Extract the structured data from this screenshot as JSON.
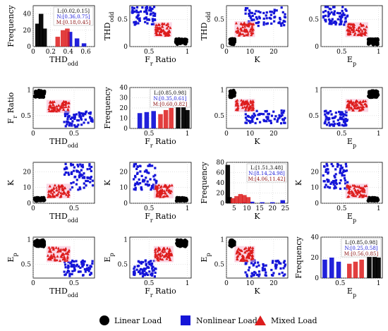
{
  "chart_data": [
    {
      "row": 0,
      "col": 0,
      "type": "bar",
      "variable": "THD_odd",
      "xlabel": "THD",
      "xlabel_sub": "odd",
      "ylabel": "Frequency",
      "xticks": [
        0,
        0.2,
        0.4,
        0.6
      ],
      "yticks": [
        0,
        20,
        40
      ],
      "xlim": [
        0,
        0.7
      ],
      "ylim": [
        0,
        50
      ],
      "annotations": [
        "L:[0.02,0.15]",
        "N:[0.36,0.75]",
        "M:[0.18,0.45]"
      ],
      "series": [
        {
          "name": "Linear Load",
          "color": "#000000",
          "x": [
            0.05,
            0.09,
            0.13
          ],
          "values": [
            28,
            40,
            22
          ]
        },
        {
          "name": "Nonlinear Load",
          "color": "#1515d8",
          "x": [
            0.42,
            0.5,
            0.58
          ],
          "values": [
            18,
            10,
            4
          ]
        },
        {
          "name": "Mixed Load",
          "color": "#dd1c1c",
          "x": [
            0.28,
            0.34,
            0.39
          ],
          "values": [
            12,
            20,
            22
          ]
        }
      ]
    },
    {
      "row": 0,
      "col": 1,
      "type": "scatter",
      "xvar": "Fr_Ratio",
      "yvar": "THD_odd",
      "xlabel": "F",
      "xlabel_sub": "r",
      "xlabel_suffix": " Ratio",
      "ylabel": "THD",
      "ylabel_sub": "odd",
      "xticks": [
        0.5,
        1
      ],
      "yticks": [
        0,
        0.5
      ],
      "xlim": [
        0.25,
        1.05
      ],
      "ylim": [
        0,
        0.75
      ],
      "clusters": [
        {
          "name": "Linear Load",
          "color": "#000000",
          "x": [
            0.85,
            0.99
          ],
          "y": [
            0.04,
            0.14
          ]
        },
        {
          "name": "Nonlinear Load",
          "color": "#1515d8",
          "x": [
            0.28,
            0.58
          ],
          "y": [
            0.4,
            0.73
          ]
        },
        {
          "name": "Mixed Load",
          "color": "#dd1c1c",
          "x": [
            0.58,
            0.78
          ],
          "y": [
            0.2,
            0.42
          ]
        }
      ]
    },
    {
      "row": 0,
      "col": 2,
      "type": "scatter",
      "xvar": "K",
      "yvar": "THD_odd",
      "xlabel": "K",
      "ylabel": "THD",
      "ylabel_sub": "odd",
      "xticks": [
        0,
        10,
        20
      ],
      "yticks": [
        0,
        0.5
      ],
      "xlim": [
        0,
        26
      ],
      "ylim": [
        0,
        0.75
      ],
      "clusters": [
        {
          "name": "Linear Load",
          "color": "#000000",
          "x": [
            1.5,
            3.5
          ],
          "y": [
            0.04,
            0.14
          ]
        },
        {
          "name": "Nonlinear Load",
          "color": "#1515d8",
          "x": [
            8,
            25
          ],
          "y": [
            0.38,
            0.72
          ]
        },
        {
          "name": "Mixed Load",
          "color": "#dd1c1c",
          "x": [
            4,
            11.5
          ],
          "y": [
            0.2,
            0.44
          ]
        }
      ]
    },
    {
      "row": 0,
      "col": 3,
      "type": "scatter",
      "xvar": "Ep",
      "yvar": "THD_odd",
      "xlabel": "E",
      "xlabel_sub": "p",
      "ylabel": "",
      "xticks": [
        0.5,
        1
      ],
      "yticks": [
        0,
        0.5
      ],
      "xlim": [
        0.22,
        1.05
      ],
      "ylim": [
        0,
        0.75
      ],
      "clusters": [
        {
          "name": "Linear Load",
          "color": "#000000",
          "x": [
            0.86,
            0.99
          ],
          "y": [
            0.04,
            0.14
          ]
        },
        {
          "name": "Nonlinear Load",
          "color": "#1515d8",
          "x": [
            0.25,
            0.58
          ],
          "y": [
            0.4,
            0.73
          ]
        },
        {
          "name": "Mixed Load",
          "color": "#dd1c1c",
          "x": [
            0.57,
            0.84
          ],
          "y": [
            0.2,
            0.42
          ]
        }
      ]
    },
    {
      "row": 1,
      "col": 0,
      "type": "scatter",
      "xvar": "THD_odd",
      "yvar": "Fr_Ratio",
      "xlabel": "THD",
      "xlabel_sub": "odd",
      "ylabel": "F",
      "ylabel_sub": "r",
      "ylabel_suffix": " Ratio",
      "xticks": [
        0,
        0.5
      ],
      "yticks": [
        0.5,
        1
      ],
      "xlim": [
        0,
        0.75
      ],
      "ylim": [
        0.25,
        1.05
      ],
      "clusters": [
        {
          "name": "Linear Load",
          "color": "#000000",
          "x": [
            0.02,
            0.14
          ],
          "y": [
            0.86,
            0.99
          ]
        },
        {
          "name": "Nonlinear Load",
          "color": "#1515d8",
          "x": [
            0.38,
            0.73
          ],
          "y": [
            0.28,
            0.58
          ]
        },
        {
          "name": "Mixed Load",
          "color": "#dd1c1c",
          "x": [
            0.18,
            0.44
          ],
          "y": [
            0.58,
            0.78
          ]
        }
      ]
    },
    {
      "row": 1,
      "col": 1,
      "type": "bar",
      "variable": "Fr_Ratio",
      "xlabel": "F",
      "xlabel_sub": "r",
      "xlabel_suffix": " Ratio",
      "ylabel": "Frequency",
      "xticks": [
        0.5,
        1
      ],
      "yticks": [
        0,
        10,
        20,
        30,
        40
      ],
      "xlim": [
        0.25,
        1.05
      ],
      "ylim": [
        0,
        40
      ],
      "annotations": [
        "L:[0.85,0.98]",
        "N:[0.35,0.61]",
        "M:[0.60,0.82]"
      ],
      "series": [
        {
          "name": "Linear Load",
          "color": "#000000",
          "x": [
            0.88,
            0.95,
            1.0
          ],
          "values": [
            22,
            24,
            18
          ]
        },
        {
          "name": "Nonlinear Load",
          "color": "#1515d8",
          "x": [
            0.38,
            0.47,
            0.56
          ],
          "values": [
            15,
            16,
            17
          ]
        },
        {
          "name": "Mixed Load",
          "color": "#dd1c1c",
          "x": [
            0.65,
            0.72,
            0.79
          ],
          "values": [
            14,
            18,
            20
          ]
        }
      ]
    },
    {
      "row": 1,
      "col": 2,
      "type": "scatter",
      "xvar": "K",
      "yvar": "Fr_Ratio",
      "xlabel": "K",
      "ylabel": "",
      "xticks": [
        0,
        10,
        20
      ],
      "yticks": [
        0.5,
        1
      ],
      "xlim": [
        0,
        26
      ],
      "ylim": [
        0.25,
        1.05
      ],
      "clusters": [
        {
          "name": "Linear Load",
          "color": "#000000",
          "x": [
            1.5,
            3.5
          ],
          "y": [
            0.86,
            0.99
          ]
        },
        {
          "name": "Nonlinear Load",
          "color": "#1515d8",
          "x": [
            8,
            25
          ],
          "y": [
            0.35,
            0.6
          ]
        },
        {
          "name": "Mixed Load",
          "color": "#dd1c1c",
          "x": [
            4,
            11.5
          ],
          "y": [
            0.6,
            0.8
          ]
        }
      ]
    },
    {
      "row": 1,
      "col": 3,
      "type": "scatter",
      "xvar": "Ep",
      "yvar": "Fr_Ratio",
      "xlabel": "E",
      "xlabel_sub": "p",
      "ylabel": "",
      "xticks": [
        0.5,
        1
      ],
      "yticks": [
        0.5,
        1
      ],
      "xlim": [
        0.22,
        1.05
      ],
      "ylim": [
        0.25,
        1.05
      ],
      "clusters": [
        {
          "name": "Linear Load",
          "color": "#000000",
          "x": [
            0.86,
            0.99
          ],
          "y": [
            0.86,
            0.99
          ]
        },
        {
          "name": "Nonlinear Load",
          "color": "#1515d8",
          "x": [
            0.25,
            0.58
          ],
          "y": [
            0.3,
            0.6
          ]
        },
        {
          "name": "Mixed Load",
          "color": "#dd1c1c",
          "x": [
            0.57,
            0.84
          ],
          "y": [
            0.6,
            0.8
          ]
        }
      ]
    },
    {
      "row": 2,
      "col": 0,
      "type": "scatter",
      "xvar": "THD_odd",
      "yvar": "K",
      "xlabel": "THD",
      "xlabel_sub": "odd",
      "ylabel": "K",
      "xticks": [
        0,
        0.5
      ],
      "yticks": [
        0,
        10,
        20
      ],
      "xlim": [
        0,
        0.75
      ],
      "ylim": [
        0,
        26
      ],
      "clusters": [
        {
          "name": "Linear Load",
          "color": "#000000",
          "x": [
            0.02,
            0.14
          ],
          "y": [
            1.5,
            3.5
          ]
        },
        {
          "name": "Nonlinear Load",
          "color": "#1515d8",
          "x": [
            0.38,
            0.73
          ],
          "y": [
            8,
            25
          ]
        },
        {
          "name": "Mixed Load",
          "color": "#dd1c1c",
          "x": [
            0.18,
            0.44
          ],
          "y": [
            4,
            11.5
          ]
        }
      ]
    },
    {
      "row": 2,
      "col": 1,
      "type": "scatter",
      "xvar": "Fr_Ratio",
      "yvar": "K",
      "xlabel": "F",
      "xlabel_sub": "r",
      "xlabel_suffix": " Ratio",
      "ylabel": "K",
      "xticks": [
        0.5,
        1
      ],
      "yticks": [
        0,
        10,
        20
      ],
      "xlim": [
        0.25,
        1.05
      ],
      "ylim": [
        0,
        26
      ],
      "clusters": [
        {
          "name": "Linear Load",
          "color": "#000000",
          "x": [
            0.86,
            0.99
          ],
          "y": [
            1.5,
            3.5
          ]
        },
        {
          "name": "Nonlinear Load",
          "color": "#1515d8",
          "x": [
            0.3,
            0.6
          ],
          "y": [
            8,
            25
          ]
        },
        {
          "name": "Mixed Load",
          "color": "#dd1c1c",
          "x": [
            0.58,
            0.8
          ],
          "y": [
            4,
            11.5
          ]
        }
      ]
    },
    {
      "row": 2,
      "col": 2,
      "type": "bar",
      "variable": "K",
      "xlabel": "K",
      "ylabel": "Frequency",
      "xticks": [
        5,
        10,
        15,
        20,
        25
      ],
      "yticks": [
        0,
        20,
        40,
        60,
        80
      ],
      "xlim": [
        2,
        26
      ],
      "ylim": [
        0,
        80
      ],
      "annotations": [
        "L:[1.51,3.48]",
        "N:[8.14,24.98]",
        "M:[4.06,11.42]"
      ],
      "series": [
        {
          "name": "Linear Load",
          "color": "#000000",
          "x": [
            2.5,
            3.2
          ],
          "values": [
            75,
            12
          ]
        },
        {
          "name": "Nonlinear Load",
          "color": "#1515d8",
          "x": [
            9,
            12,
            16,
            20,
            24
          ],
          "values": [
            2,
            3,
            2,
            2,
            6
          ]
        },
        {
          "name": "Mixed Load",
          "color": "#dd1c1c",
          "x": [
            4.5,
            6,
            7.5,
            9,
            10.5
          ],
          "values": [
            10,
            14,
            18,
            16,
            12
          ]
        }
      ]
    },
    {
      "row": 2,
      "col": 3,
      "type": "scatter",
      "xvar": "Ep",
      "yvar": "K",
      "xlabel": "E",
      "xlabel_sub": "p",
      "ylabel": "K",
      "xticks": [
        0.5,
        1
      ],
      "yticks": [
        0,
        10,
        20
      ],
      "xlim": [
        0.22,
        1.05
      ],
      "ylim": [
        0,
        26
      ],
      "clusters": [
        {
          "name": "Linear Load",
          "color": "#000000",
          "x": [
            0.86,
            0.99
          ],
          "y": [
            1.5,
            3.5
          ]
        },
        {
          "name": "Nonlinear Load",
          "color": "#1515d8",
          "x": [
            0.25,
            0.58
          ],
          "y": [
            8,
            25
          ]
        },
        {
          "name": "Mixed Load",
          "color": "#dd1c1c",
          "x": [
            0.57,
            0.84
          ],
          "y": [
            4,
            11.5
          ]
        }
      ]
    },
    {
      "row": 3,
      "col": 0,
      "type": "scatter",
      "xvar": "THD_odd",
      "yvar": "Ep",
      "xlabel": "THD",
      "xlabel_sub": "odd",
      "ylabel": "E",
      "ylabel_sub": "p",
      "xticks": [
        0,
        0.5
      ],
      "yticks": [
        0.5,
        1
      ],
      "xlim": [
        0,
        0.75
      ],
      "ylim": [
        0.22,
        1.05
      ],
      "clusters": [
        {
          "name": "Linear Load",
          "color": "#000000",
          "x": [
            0.02,
            0.14
          ],
          "y": [
            0.86,
            0.99
          ]
        },
        {
          "name": "Nonlinear Load",
          "color": "#1515d8",
          "x": [
            0.38,
            0.73
          ],
          "y": [
            0.25,
            0.58
          ]
        },
        {
          "name": "Mixed Load",
          "color": "#dd1c1c",
          "x": [
            0.18,
            0.44
          ],
          "y": [
            0.57,
            0.84
          ]
        }
      ]
    },
    {
      "row": 3,
      "col": 1,
      "type": "scatter",
      "xvar": "Fr_Ratio",
      "yvar": "Ep",
      "xlabel": "F",
      "xlabel_sub": "r",
      "xlabel_suffix": " Ratio",
      "ylabel": "E",
      "ylabel_sub": "p",
      "xticks": [
        0.5,
        1
      ],
      "yticks": [
        0.5,
        1
      ],
      "xlim": [
        0.25,
        1.05
      ],
      "ylim": [
        0.22,
        1.05
      ],
      "clusters": [
        {
          "name": "Linear Load",
          "color": "#000000",
          "x": [
            0.86,
            0.99
          ],
          "y": [
            0.86,
            0.99
          ]
        },
        {
          "name": "Nonlinear Load",
          "color": "#1515d8",
          "x": [
            0.3,
            0.6
          ],
          "y": [
            0.25,
            0.58
          ]
        },
        {
          "name": "Mixed Load",
          "color": "#dd1c1c",
          "x": [
            0.58,
            0.8
          ],
          "y": [
            0.57,
            0.84
          ]
        }
      ]
    },
    {
      "row": 3,
      "col": 2,
      "type": "scatter",
      "xvar": "K",
      "yvar": "Ep",
      "xlabel": "K",
      "ylabel": "E",
      "ylabel_sub": "p",
      "xticks": [
        0,
        10,
        20
      ],
      "yticks": [
        0.5,
        1
      ],
      "xlim": [
        0,
        26
      ],
      "ylim": [
        0.22,
        1.05
      ],
      "clusters": [
        {
          "name": "Linear Load",
          "color": "#000000",
          "x": [
            1.5,
            3.5
          ],
          "y": [
            0.86,
            0.99
          ]
        },
        {
          "name": "Nonlinear Load",
          "color": "#1515d8",
          "x": [
            8,
            25
          ],
          "y": [
            0.25,
            0.58
          ]
        },
        {
          "name": "Mixed Load",
          "color": "#dd1c1c",
          "x": [
            4,
            11.5
          ],
          "y": [
            0.57,
            0.84
          ]
        }
      ]
    },
    {
      "row": 3,
      "col": 3,
      "type": "bar",
      "variable": "Ep",
      "xlabel": "E",
      "xlabel_sub": "p",
      "ylabel": "Frequency",
      "xticks": [
        0.5,
        1
      ],
      "yticks": [
        0,
        20,
        40
      ],
      "xlim": [
        0.25,
        1.05
      ],
      "ylim": [
        0,
        40
      ],
      "annotations": [
        "L:[0.85,0.98]",
        "N:[0.25,0.58]",
        "M:[0.56,0.85]"
      ],
      "series": [
        {
          "name": "Linear Load",
          "color": "#000000",
          "x": [
            0.88,
            0.95,
            1.0
          ],
          "values": [
            30,
            38,
            20
          ]
        },
        {
          "name": "Nonlinear Load",
          "color": "#1515d8",
          "x": [
            0.3,
            0.39,
            0.48
          ],
          "values": [
            18,
            20,
            16
          ]
        },
        {
          "name": "Mixed Load",
          "color": "#dd1c1c",
          "x": [
            0.62,
            0.7,
            0.78
          ],
          "values": [
            14,
            16,
            18
          ]
        }
      ]
    }
  ],
  "legend": {
    "placement": "bottom",
    "items": [
      {
        "label": "Linear Load",
        "color": "#000000",
        "marker": "circle"
      },
      {
        "label": "Nonlinear Load",
        "color": "#1515d8",
        "marker": "square"
      },
      {
        "label": "Mixed Load",
        "color": "#dd1c1c",
        "marker": "triangle"
      }
    ]
  },
  "colors": {
    "linear": "#000000",
    "nonlinear": "#1515d8",
    "mixed": "#dd1c1c",
    "mixed_halo": "#f5b6d0"
  }
}
